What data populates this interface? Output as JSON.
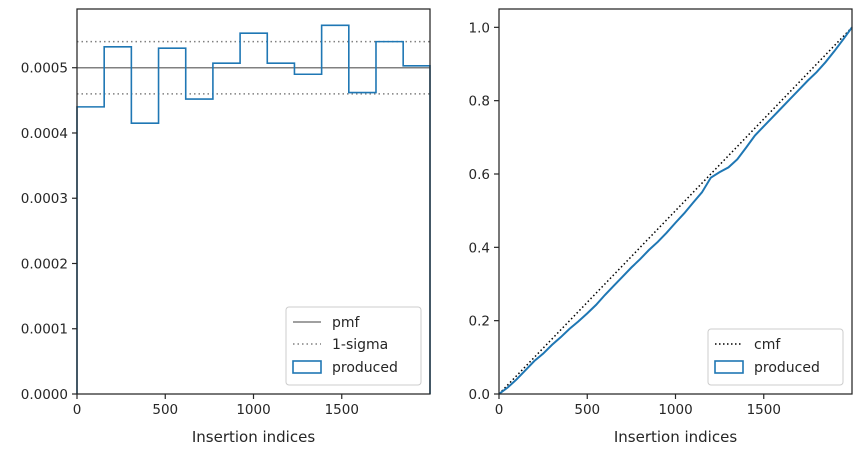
{
  "colors": {
    "produced": "#1f77b4",
    "pmf": "#808080",
    "sigma": "#808080",
    "cmf": "#000000",
    "axes": "#262626"
  },
  "chart_data": [
    {
      "type": "histogram",
      "xlabel": "Insertion indices",
      "ylabel": "",
      "title": "",
      "xlim": [
        0,
        2000
      ],
      "ylim": [
        0,
        0.00059
      ],
      "xticks": [
        "0",
        "500",
        "1000",
        "1500"
      ],
      "xtick_values": [
        0,
        500,
        1000,
        1500
      ],
      "yticks": [
        "0.0000",
        "0.0001",
        "0.0002",
        "0.0003",
        "0.0004",
        "0.0005"
      ],
      "ytick_values": [
        0,
        0.0001,
        0.0002,
        0.0003,
        0.0004,
        0.0005
      ],
      "legend_position": "lower right",
      "legend": [
        "pmf",
        "1-sigma",
        "produced"
      ],
      "pmf": 0.0005,
      "sigma_band": [
        0.00046,
        0.00054
      ],
      "produced": {
        "bin_edges": [
          0,
          154,
          308,
          462,
          616,
          770,
          924,
          1078,
          1232,
          1386,
          1540,
          1694,
          1848,
          2000
        ],
        "values": [
          0.00044,
          0.000532,
          0.000415,
          0.00053,
          0.000452,
          0.000507,
          0.000553,
          0.000507,
          0.00049,
          0.000565,
          0.000462,
          0.00054,
          0.000503
        ]
      }
    },
    {
      "type": "line",
      "xlabel": "Insertion indices",
      "ylabel": "",
      "title": "",
      "xlim": [
        0,
        2000
      ],
      "ylim": [
        0,
        1.05
      ],
      "xticks": [
        "0",
        "500",
        "1000",
        "1500"
      ],
      "xtick_values": [
        0,
        500,
        1000,
        1500
      ],
      "yticks": [
        "0.0",
        "0.2",
        "0.4",
        "0.6",
        "0.8",
        "1.0"
      ],
      "ytick_values": [
        0,
        0.2,
        0.4,
        0.6,
        0.8,
        1.0
      ],
      "legend_position": "lower right",
      "legend": [
        "cmf",
        "produced"
      ],
      "cmf": {
        "x": [
          0,
          2000
        ],
        "y": [
          0,
          1.0
        ]
      },
      "produced": {
        "x": [
          0,
          50,
          100,
          150,
          200,
          250,
          300,
          350,
          400,
          450,
          500,
          550,
          600,
          650,
          700,
          750,
          800,
          850,
          900,
          950,
          1000,
          1050,
          1100,
          1150,
          1200,
          1250,
          1300,
          1350,
          1400,
          1450,
          1500,
          1550,
          1600,
          1650,
          1700,
          1750,
          1800,
          1850,
          1900,
          1950,
          2000
        ],
        "y": [
          0,
          0.018,
          0.04,
          0.065,
          0.09,
          0.11,
          0.134,
          0.155,
          0.178,
          0.198,
          0.22,
          0.243,
          0.27,
          0.295,
          0.32,
          0.345,
          0.368,
          0.393,
          0.415,
          0.44,
          0.467,
          0.493,
          0.522,
          0.55,
          0.59,
          0.605,
          0.618,
          0.64,
          0.672,
          0.705,
          0.73,
          0.755,
          0.78,
          0.805,
          0.83,
          0.855,
          0.878,
          0.905,
          0.935,
          0.967,
          1.0
        ]
      }
    }
  ]
}
